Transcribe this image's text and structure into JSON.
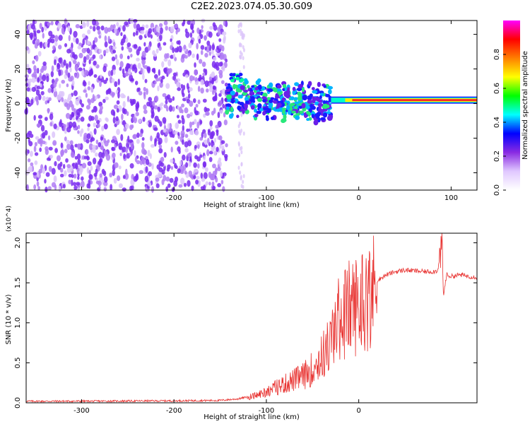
{
  "chart_data": [
    {
      "type": "heatmap",
      "title": "C2E2.2023.074.05.30.G09",
      "xlabel": "Height of straight line (km)",
      "ylabel": "Frequency (Hz)",
      "xlim": [
        -360,
        128
      ],
      "ylim": [
        -50,
        48
      ],
      "xticks": [
        -300,
        -200,
        -100,
        0,
        100
      ],
      "yticks": [
        -40,
        -20,
        0,
        20,
        40
      ],
      "colorbar": {
        "label": "Normalized spectral amplitude",
        "range": [
          0.0,
          1.0
        ],
        "ticks": [
          0.0,
          0.2,
          0.4,
          0.6,
          0.8
        ],
        "colors": [
          "#ffffff",
          "#e0c8ff",
          "#8a2be2",
          "#0000ff",
          "#00ffff",
          "#00ff00",
          "#ffff00",
          "#ff7f00",
          "#ff0000",
          "#ff00ff"
        ]
      },
      "regions": [
        {
          "name": "noise",
          "x_range": [
            -360,
            -143
          ],
          "freq_range": [
            -50,
            48
          ],
          "amplitude": 0.1
        },
        {
          "name": "transition",
          "x_range": [
            -143,
            -30
          ],
          "freq_range": [
            -20,
            15
          ],
          "amplitude": 0.45
        },
        {
          "name": "steady_signal",
          "x_range": [
            -30,
            128
          ],
          "freq_center": 2,
          "amplitude": 0.95
        }
      ]
    },
    {
      "type": "line",
      "xlabel": "Height of straight line (km)",
      "ylabel": "SNR (10 * v/v)",
      "y_multiplier": "(x10^4)",
      "xlim": [
        -360,
        128
      ],
      "ylim": [
        0.0,
        2.12
      ],
      "xticks": [
        -300,
        -200,
        -100,
        0
      ],
      "yticks": [
        0.0,
        0.5,
        1.0,
        1.5,
        2.0
      ],
      "series": [
        {
          "name": "SNR",
          "color": "#e8312f",
          "x": [
            -360,
            -300,
            -200,
            -150,
            -130,
            -110,
            -100,
            -90,
            -80,
            -70,
            -60,
            -50,
            -40,
            -30,
            -25,
            -20,
            -15,
            -10,
            -5,
            0,
            5,
            10,
            15,
            20,
            30,
            40,
            50,
            60,
            70,
            80,
            85,
            88,
            90,
            92,
            95,
            100,
            110,
            120,
            128
          ],
          "y": [
            0.02,
            0.02,
            0.025,
            0.03,
            0.05,
            0.1,
            0.15,
            0.2,
            0.25,
            0.3,
            0.35,
            0.45,
            0.6,
            0.8,
            1.0,
            1.15,
            1.2,
            1.25,
            1.28,
            1.3,
            1.38,
            1.42,
            1.48,
            1.53,
            1.6,
            1.64,
            1.66,
            1.65,
            1.64,
            1.64,
            1.65,
            1.8,
            2.1,
            1.35,
            1.6,
            1.58,
            1.6,
            1.58,
            1.57
          ]
        }
      ]
    }
  ]
}
